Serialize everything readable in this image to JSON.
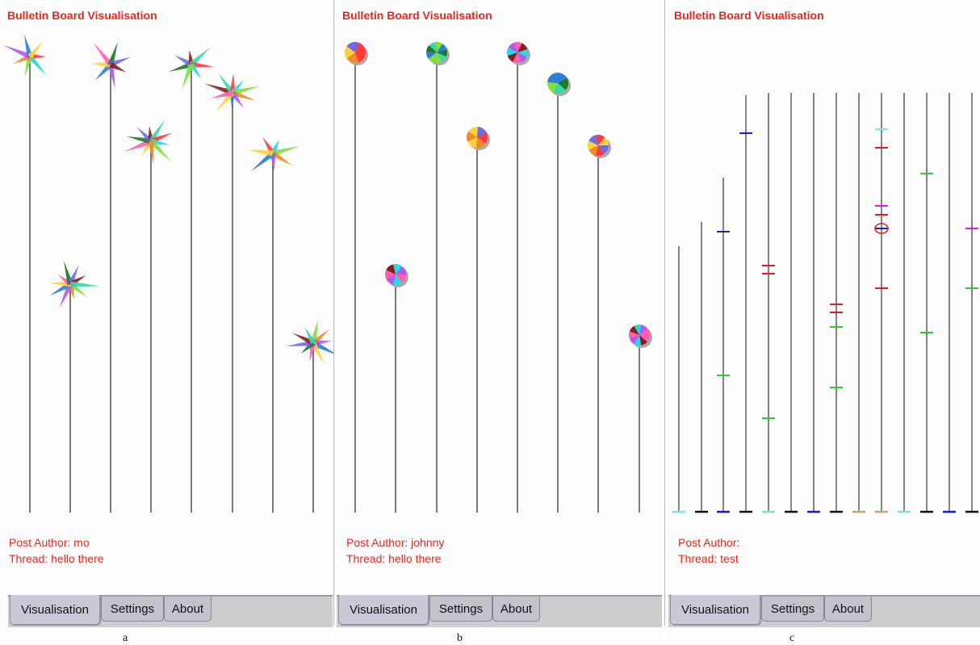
{
  "panels": [
    {
      "id": "a",
      "title": "Bulletin Board Visualisation",
      "author_line": "Post Author: mo",
      "thread_line": "Thread: hello there",
      "caption": "a"
    },
    {
      "id": "b",
      "title": "Bulletin Board Visualisation",
      "author_line": "Post Author: johnny",
      "thread_line": "Thread: hello there",
      "caption": "b"
    },
    {
      "id": "c",
      "title": "Bulletin Board Visualisation",
      "author_line": "Post Author:",
      "thread_line": "Thread: test",
      "caption": "c"
    }
  ],
  "tabs": [
    "Visualisation",
    "Settings",
    "About"
  ],
  "active_tab": "Visualisation",
  "colors": {
    "text_accent": "#e8271c",
    "stem": "#333333",
    "tab_bar": "#cdcdcd"
  },
  "icons": {
    "a": "starburst-flower-icon",
    "b": "pie-chart-flower-icon",
    "c": "tick-mark-stem-icon"
  }
}
